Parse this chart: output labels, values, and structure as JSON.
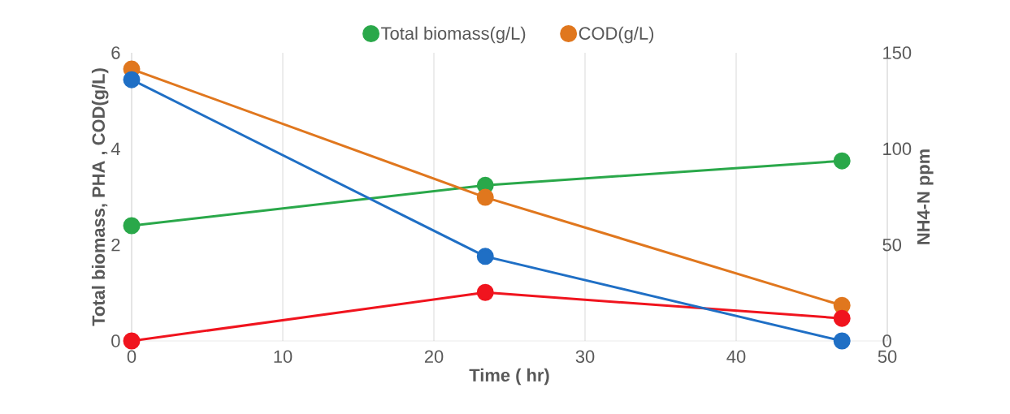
{
  "chart_data": {
    "type": "line",
    "xlabel": "Time ( hr)",
    "ylabel": "Total biomass, PHA , COD(g/L)",
    "y2label": "NH4-N ppm",
    "x": [
      0,
      23.4,
      47
    ],
    "series": [
      {
        "name": "Total biomass(g/L)",
        "color": "#2aa84a",
        "values": [
          2.4,
          3.24,
          3.75
        ]
      },
      {
        "name": "COD(g/L)",
        "color": "#e0771e",
        "values": [
          5.66,
          2.99,
          0.74
        ]
      },
      {
        "color": "#1f6fc5",
        "values": [
          136,
          44,
          0
        ],
        "axis": "y2"
      },
      {
        "color": "#f0141e",
        "values": [
          0,
          1.01,
          0.47
        ]
      }
    ],
    "xlim": [
      0,
      50
    ],
    "xticks": [
      0,
      10,
      20,
      30,
      40,
      50
    ],
    "ylim": [
      0,
      6
    ],
    "yticks": [
      0,
      2,
      4,
      6
    ],
    "y2lim": [
      0,
      150
    ],
    "y2ticks": [
      0,
      50,
      100,
      150
    ],
    "grid": "x",
    "legend": "top",
    "marker": "circle",
    "line_style": "solid"
  }
}
